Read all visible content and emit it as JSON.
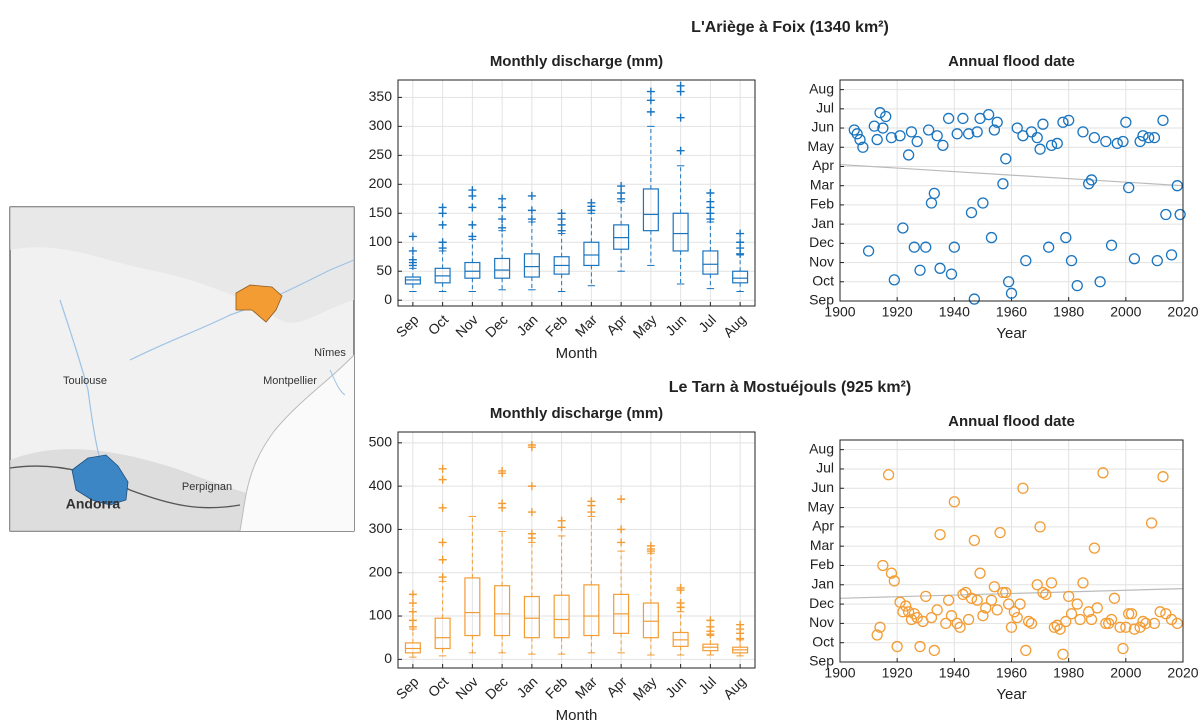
{
  "sections": [
    {
      "title": "L'Ariège à Foix (1340 km²)",
      "color": "#1a75c0"
    },
    {
      "title": "Le Tarn à Mostuéjouls (925 km²)",
      "color": "#f39c34"
    }
  ],
  "map": {
    "labels": [
      "Toulouse",
      "Montpellier",
      "Nîmes",
      "Perpignan",
      "Andorra"
    ]
  },
  "chart_data": [
    {
      "type": "box",
      "title": "Monthly discharge (mm)",
      "x_label": "Month",
      "color": "#1a75c0",
      "grid": true,
      "categories": [
        "Sep",
        "Oct",
        "Nov",
        "Dec",
        "Jan",
        "Feb",
        "Mar",
        "Apr",
        "May",
        "Jun",
        "Jul",
        "Aug"
      ],
      "ylim": [
        -10,
        380
      ],
      "yticks": [
        0,
        50,
        100,
        150,
        200,
        250,
        300,
        350
      ],
      "boxes": [
        {
          "min": 15,
          "q1": 28,
          "median": 35,
          "q3": 40,
          "max": 55,
          "outliers": [
            60,
            65,
            70,
            85,
            110
          ]
        },
        {
          "min": 15,
          "q1": 30,
          "median": 42,
          "q3": 55,
          "max": 85,
          "outliers": [
            90,
            100,
            130,
            150,
            160
          ]
        },
        {
          "min": 15,
          "q1": 38,
          "median": 50,
          "q3": 65,
          "max": 105,
          "outliers": [
            110,
            130,
            160,
            180,
            190
          ]
        },
        {
          "min": 18,
          "q1": 38,
          "median": 52,
          "q3": 72,
          "max": 120,
          "outliers": [
            125,
            140,
            160,
            175
          ]
        },
        {
          "min": 18,
          "q1": 40,
          "median": 58,
          "q3": 80,
          "max": 135,
          "outliers": [
            140,
            155,
            180
          ]
        },
        {
          "min": 15,
          "q1": 45,
          "median": 60,
          "q3": 75,
          "max": 115,
          "outliers": [
            120,
            130,
            140,
            150
          ]
        },
        {
          "min": 25,
          "q1": 60,
          "median": 78,
          "q3": 100,
          "max": 150,
          "outliers": [
            155,
            162,
            168
          ]
        },
        {
          "min": 50,
          "q1": 88,
          "median": 108,
          "q3": 130,
          "max": 170,
          "outliers": [
            175,
            185,
            197
          ]
        },
        {
          "min": 60,
          "q1": 120,
          "median": 148,
          "q3": 192,
          "max": 300,
          "outliers": [
            325,
            345,
            360
          ]
        },
        {
          "min": 28,
          "q1": 85,
          "median": 115,
          "q3": 150,
          "max": 232,
          "outliers": [
            258,
            315,
            360,
            370
          ]
        },
        {
          "min": 20,
          "q1": 45,
          "median": 62,
          "q3": 85,
          "max": 135,
          "outliers": [
            140,
            150,
            160,
            170,
            185
          ]
        },
        {
          "min": 15,
          "q1": 30,
          "median": 38,
          "q3": 50,
          "max": 78,
          "outliers": [
            80,
            90,
            100,
            115
          ]
        }
      ]
    },
    {
      "type": "scatter",
      "title": "Annual flood date",
      "x_label": "Year",
      "color": "#1a75c0",
      "grid": true,
      "trend": {
        "x": [
          1900,
          2020
        ],
        "y": [
          7.1,
          6.0
        ],
        "color": "#bbbbbb"
      },
      "xlim": [
        1900,
        2020
      ],
      "xticks": [
        1900,
        1920,
        1940,
        1960,
        1980,
        2000,
        2020
      ],
      "ylim": [
        0,
        11.5
      ],
      "yticks": [
        {
          "value": 0,
          "label": "Sep"
        },
        {
          "value": 1,
          "label": "Oct"
        },
        {
          "value": 2,
          "label": "Nov"
        },
        {
          "value": 3,
          "label": "Dec"
        },
        {
          "value": 4,
          "label": "Jan"
        },
        {
          "value": 5,
          "label": "Feb"
        },
        {
          "value": 6,
          "label": "Mar"
        },
        {
          "value": 7,
          "label": "Apr"
        },
        {
          "value": 8,
          "label": "May"
        },
        {
          "value": 9,
          "label": "Jun"
        },
        {
          "value": 10,
          "label": "Jul"
        },
        {
          "value": 11,
          "label": "Aug"
        }
      ],
      "x": [
        1905,
        1906,
        1907,
        1908,
        1910,
        1912,
        1913,
        1914,
        1915,
        1916,
        1918,
        1919,
        1921,
        1922,
        1924,
        1925,
        1926,
        1927,
        1928,
        1930,
        1931,
        1932,
        1933,
        1934,
        1935,
        1936,
        1938,
        1939,
        1940,
        1941,
        1943,
        1945,
        1946,
        1947,
        1948,
        1949,
        1950,
        1952,
        1953,
        1954,
        1955,
        1957,
        1958,
        1959,
        1960,
        1962,
        1964,
        1965,
        1967,
        1969,
        1970,
        1971,
        1973,
        1974,
        1976,
        1978,
        1979,
        1980,
        1981,
        1983,
        1985,
        1987,
        1988,
        1989,
        1991,
        1993,
        1995,
        1997,
        1999,
        2000,
        2001,
        2003,
        2005,
        2006,
        2008,
        2010,
        2011,
        2013,
        2014,
        2016,
        2018,
        2019
      ],
      "y": [
        8.9,
        8.7,
        8.4,
        8.0,
        2.6,
        9.1,
        8.4,
        9.8,
        9.0,
        9.6,
        8.5,
        1.1,
        8.6,
        3.8,
        7.6,
        8.8,
        2.8,
        8.3,
        1.6,
        2.8,
        8.9,
        5.1,
        5.6,
        8.6,
        1.7,
        8.1,
        9.5,
        1.4,
        2.8,
        8.7,
        9.5,
        8.7,
        4.6,
        0.1,
        8.8,
        9.5,
        5.1,
        9.7,
        3.3,
        8.9,
        9.3,
        6.1,
        7.4,
        1.0,
        0.4,
        9.0,
        8.6,
        2.1,
        8.8,
        8.5,
        7.9,
        9.2,
        2.8,
        8.1,
        8.2,
        9.3,
        3.3,
        9.4,
        2.1,
        0.8,
        8.8,
        6.1,
        6.3,
        8.5,
        1.0,
        8.3,
        2.9,
        8.2,
        8.3,
        9.3,
        5.9,
        2.2,
        8.3,
        8.6,
        8.5,
        8.5,
        2.1,
        9.4,
        4.5,
        2.4,
        6.0,
        4.5
      ]
    },
    {
      "type": "box",
      "title": "Monthly discharge (mm)",
      "x_label": "Month",
      "color": "#f39c34",
      "grid": true,
      "categories": [
        "Sep",
        "Oct",
        "Nov",
        "Dec",
        "Jan",
        "Feb",
        "Mar",
        "Apr",
        "May",
        "Jun",
        "Jul",
        "Aug"
      ],
      "ylim": [
        -20,
        525
      ],
      "yticks": [
        0,
        100,
        200,
        300,
        400,
        500
      ],
      "boxes": [
        {
          "min": 5,
          "q1": 15,
          "median": 25,
          "q3": 38,
          "max": 70,
          "outliers": [
            75,
            90,
            110,
            130,
            150
          ]
        },
        {
          "min": 8,
          "q1": 25,
          "median": 50,
          "q3": 95,
          "max": 180,
          "outliers": [
            190,
            230,
            270,
            350,
            415,
            440
          ]
        },
        {
          "min": 15,
          "q1": 55,
          "median": 108,
          "q3": 188,
          "max": 330,
          "outliers": []
        },
        {
          "min": 15,
          "q1": 55,
          "median": 105,
          "q3": 170,
          "max": 295,
          "outliers": [
            350,
            360,
            430,
            435
          ]
        },
        {
          "min": 12,
          "q1": 50,
          "median": 95,
          "q3": 145,
          "max": 270,
          "outliers": [
            280,
            290,
            340,
            400,
            490,
            495
          ]
        },
        {
          "min": 12,
          "q1": 50,
          "median": 92,
          "q3": 148,
          "max": 285,
          "outliers": [
            305,
            320
          ]
        },
        {
          "min": 15,
          "q1": 55,
          "median": 100,
          "q3": 172,
          "max": 330,
          "outliers": [
            340,
            355,
            365
          ]
        },
        {
          "min": 15,
          "q1": 60,
          "median": 105,
          "q3": 150,
          "max": 250,
          "outliers": [
            270,
            300,
            370
          ]
        },
        {
          "min": 10,
          "q1": 50,
          "median": 88,
          "q3": 130,
          "max": 245,
          "outliers": [
            250,
            255,
            262
          ]
        },
        {
          "min": 10,
          "q1": 30,
          "median": 45,
          "q3": 62,
          "max": 110,
          "outliers": [
            120,
            130,
            160,
            165
          ]
        },
        {
          "min": 10,
          "q1": 20,
          "median": 28,
          "q3": 35,
          "max": 55,
          "outliers": [
            58,
            65,
            75,
            90
          ]
        },
        {
          "min": 8,
          "q1": 15,
          "median": 22,
          "q3": 28,
          "max": 45,
          "outliers": [
            48,
            60,
            70,
            80
          ]
        }
      ]
    },
    {
      "type": "scatter",
      "title": "Annual flood date",
      "x_label": "Year",
      "color": "#f39c34",
      "grid": true,
      "trend": {
        "x": [
          1900,
          2020
        ],
        "y": [
          3.3,
          3.8
        ],
        "color": "#bbbbbb"
      },
      "xlim": [
        1900,
        2020
      ],
      "xticks": [
        1900,
        1920,
        1940,
        1960,
        1980,
        2000,
        2020
      ],
      "ylim": [
        0,
        11.5
      ],
      "yticks": [
        {
          "value": 0,
          "label": "Sep"
        },
        {
          "value": 1,
          "label": "Oct"
        },
        {
          "value": 2,
          "label": "Nov"
        },
        {
          "value": 3,
          "label": "Dec"
        },
        {
          "value": 4,
          "label": "Jan"
        },
        {
          "value": 5,
          "label": "Feb"
        },
        {
          "value": 6,
          "label": "Mar"
        },
        {
          "value": 7,
          "label": "Apr"
        },
        {
          "value": 8,
          "label": "May"
        },
        {
          "value": 9,
          "label": "Jun"
        },
        {
          "value": 10,
          "label": "Jul"
        },
        {
          "value": 11,
          "label": "Aug"
        }
      ],
      "x": [
        1913,
        1914,
        1915,
        1917,
        1918,
        1919,
        1920,
        1921,
        1922,
        1923,
        1924,
        1925,
        1926,
        1927,
        1928,
        1929,
        1930,
        1932,
        1933,
        1934,
        1935,
        1937,
        1938,
        1939,
        1940,
        1941,
        1942,
        1943,
        1944,
        1945,
        1946,
        1947,
        1948,
        1949,
        1950,
        1951,
        1953,
        1954,
        1955,
        1956,
        1957,
        1958,
        1959,
        1960,
        1961,
        1962,
        1963,
        1964,
        1965,
        1966,
        1967,
        1969,
        1970,
        1971,
        1972,
        1974,
        1975,
        1976,
        1977,
        1978,
        1979,
        1980,
        1981,
        1983,
        1984,
        1985,
        1987,
        1988,
        1989,
        1990,
        1992,
        1993,
        1994,
        1995,
        1996,
        1998,
        1999,
        2000,
        2001,
        2002,
        2003,
        2005,
        2006,
        2007,
        2009,
        2010,
        2012,
        2013,
        2014,
        2016,
        2018
      ],
      "y": [
        1.4,
        1.8,
        5.0,
        9.7,
        4.6,
        4.2,
        0.8,
        3.1,
        2.6,
        2.9,
        2.6,
        2.2,
        2.5,
        2.3,
        0.8,
        2.1,
        3.4,
        2.3,
        0.6,
        2.7,
        6.6,
        2.0,
        3.2,
        2.4,
        8.3,
        2.0,
        1.8,
        3.5,
        3.6,
        2.2,
        3.3,
        6.3,
        3.2,
        4.6,
        2.4,
        2.8,
        3.2,
        3.9,
        2.7,
        6.7,
        3.6,
        3.6,
        3.0,
        1.8,
        2.6,
        2.3,
        3.0,
        9.0,
        0.6,
        2.1,
        2.0,
        4.0,
        7.0,
        3.6,
        3.5,
        4.1,
        1.8,
        1.9,
        1.7,
        0.4,
        2.1,
        3.4,
        2.5,
        3.0,
        2.2,
        4.1,
        2.6,
        2.2,
        5.9,
        2.8,
        9.8,
        2.0,
        2.0,
        2.2,
        3.3,
        1.8,
        0.7,
        1.8,
        2.5,
        2.5,
        1.7,
        1.8,
        2.1,
        2.0,
        7.2,
        2.0,
        2.6,
        9.6,
        2.5,
        2.2,
        2.0
      ]
    }
  ]
}
